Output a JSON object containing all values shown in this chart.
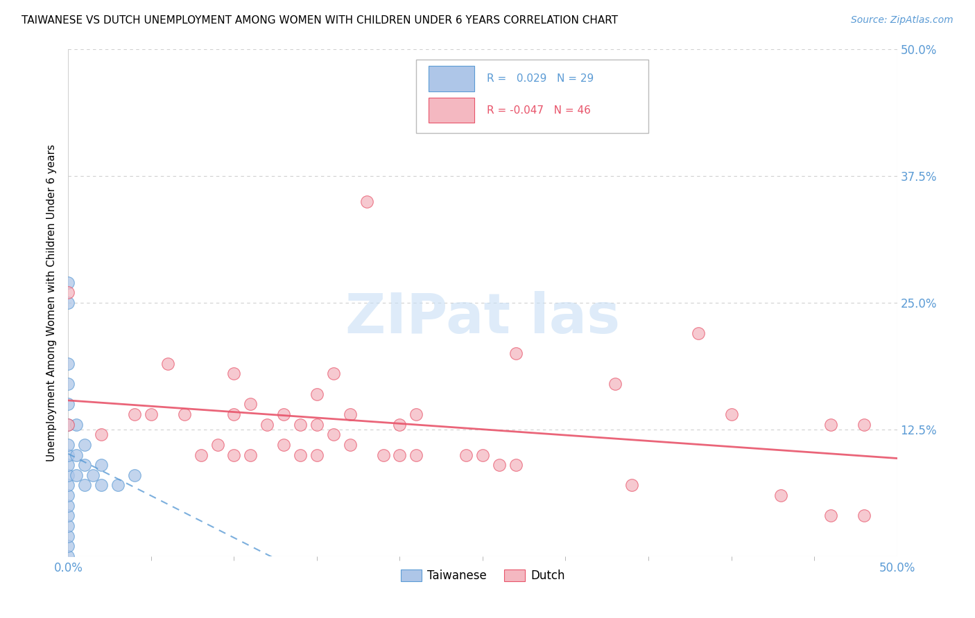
{
  "title": "TAIWANESE VS DUTCH UNEMPLOYMENT AMONG WOMEN WITH CHILDREN UNDER 6 YEARS CORRELATION CHART",
  "source": "Source: ZipAtlas.com",
  "ylabel": "Unemployment Among Women with Children Under 6 years",
  "xlim": [
    0.0,
    0.5
  ],
  "ylim": [
    0.0,
    0.5
  ],
  "ytick_positions": [
    0.125,
    0.25,
    0.375,
    0.5
  ],
  "ytick_labels": [
    "12.5%",
    "25.0%",
    "37.5%",
    "50.0%"
  ],
  "xtick_positions": [
    0.0,
    0.5
  ],
  "xtick_labels": [
    "0.0%",
    "50.0%"
  ],
  "R_taiwanese": 0.029,
  "N_taiwanese": 29,
  "R_dutch": -0.047,
  "N_dutch": 46,
  "taiwanese_fill": "#aec6e8",
  "dutch_fill": "#f4b8c1",
  "taiwanese_edge": "#5b9bd5",
  "dutch_edge": "#e8546a",
  "tw_line_color": "#5b9bd5",
  "du_line_color": "#e8546a",
  "background": "#ffffff",
  "grid_color": "#d0d0d0",
  "watermark_color": "#c8dff5",
  "taiwanese_x": [
    0.0,
    0.0,
    0.0,
    0.0,
    0.0,
    0.0,
    0.0,
    0.0,
    0.0,
    0.0,
    0.0,
    0.0,
    0.0,
    0.0,
    0.0,
    0.0,
    0.0,
    0.0,
    0.005,
    0.005,
    0.005,
    0.01,
    0.01,
    0.01,
    0.015,
    0.02,
    0.02,
    0.03,
    0.04
  ],
  "taiwanese_y": [
    0.0,
    0.01,
    0.02,
    0.03,
    0.04,
    0.05,
    0.06,
    0.07,
    0.08,
    0.09,
    0.1,
    0.11,
    0.13,
    0.15,
    0.17,
    0.19,
    0.27,
    0.25,
    0.08,
    0.1,
    0.13,
    0.07,
    0.09,
    0.11,
    0.08,
    0.07,
    0.09,
    0.07,
    0.08
  ],
  "dutch_x": [
    0.0,
    0.0,
    0.02,
    0.04,
    0.05,
    0.06,
    0.07,
    0.08,
    0.09,
    0.1,
    0.1,
    0.1,
    0.11,
    0.11,
    0.12,
    0.13,
    0.13,
    0.14,
    0.14,
    0.15,
    0.15,
    0.15,
    0.16,
    0.16,
    0.17,
    0.17,
    0.18,
    0.19,
    0.2,
    0.2,
    0.21,
    0.21,
    0.24,
    0.25,
    0.26,
    0.27,
    0.27,
    0.33,
    0.34,
    0.38,
    0.4,
    0.43,
    0.46,
    0.46,
    0.48,
    0.48
  ],
  "dutch_y": [
    0.13,
    0.26,
    0.12,
    0.14,
    0.14,
    0.19,
    0.14,
    0.1,
    0.11,
    0.1,
    0.14,
    0.18,
    0.1,
    0.15,
    0.13,
    0.11,
    0.14,
    0.1,
    0.13,
    0.1,
    0.13,
    0.16,
    0.12,
    0.18,
    0.11,
    0.14,
    0.35,
    0.1,
    0.1,
    0.13,
    0.1,
    0.14,
    0.1,
    0.1,
    0.09,
    0.09,
    0.2,
    0.17,
    0.07,
    0.22,
    0.14,
    0.06,
    0.04,
    0.13,
    0.04,
    0.13
  ]
}
